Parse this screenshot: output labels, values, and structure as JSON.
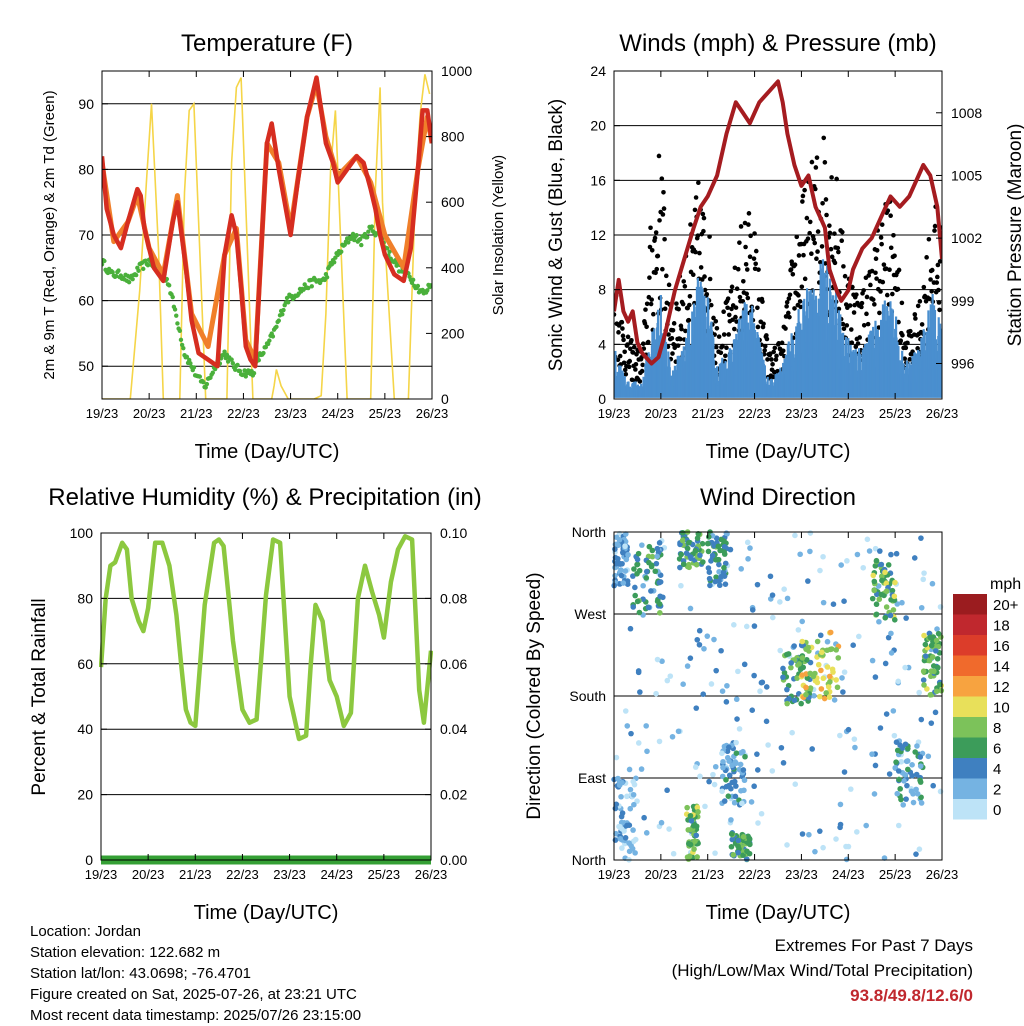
{
  "charts": [
    {
      "id": "temperature",
      "title": "Temperature (F)",
      "xlabel": "Time (Day/UTC)",
      "ylabel_left": "2m & 9m T (Red, Orange) & 2m Td (Green)",
      "ylabel_right": "Solar Insolation (Yellow)",
      "xticks": [
        "19/23",
        "20/23",
        "21/23",
        "22/23",
        "23/23",
        "24/23",
        "25/23",
        "26/23"
      ],
      "yticks_left": [
        "50",
        "60",
        "70",
        "80",
        "90"
      ],
      "yticks_right": [
        "0",
        "200",
        "400",
        "600",
        "800",
        "1000"
      ]
    },
    {
      "id": "winds",
      "title": "Winds (mph) & Pressure (mb)",
      "xlabel": "Time (Day/UTC)",
      "ylabel_left": "Sonic Wind & Gust (Blue, Black)",
      "ylabel_right": "Station Pressure (Maroon)",
      "xticks": [
        "19/23",
        "20/23",
        "21/23",
        "22/23",
        "23/23",
        "24/23",
        "25/23",
        "26/23"
      ],
      "yticks_left": [
        "0",
        "4",
        "8",
        "12",
        "16",
        "20",
        "24"
      ],
      "yticks_right": [
        "996",
        "999",
        "1002",
        "1005",
        "1008"
      ]
    },
    {
      "id": "humidity",
      "title": "Relative Humidity (%) & Precipitation (in)",
      "xlabel": "Time (Day/UTC)",
      "ylabel_left": "Percent & Total Rainfall",
      "xticks": [
        "19/23",
        "20/23",
        "21/23",
        "22/23",
        "23/23",
        "24/23",
        "25/23",
        "26/23"
      ],
      "yticks_left": [
        "0",
        "20",
        "40",
        "60",
        "80",
        "100"
      ],
      "yticks_right": [
        "0.00",
        "0.02",
        "0.04",
        "0.06",
        "0.08",
        "0.10"
      ]
    },
    {
      "id": "winddir",
      "title": "Wind Direction",
      "xlabel": "Time (Day/UTC)",
      "ylabel_left": "Direction (Colored By Speed)",
      "xticks": [
        "19/23",
        "20/23",
        "21/23",
        "22/23",
        "23/23",
        "24/23",
        "25/23",
        "26/23"
      ],
      "yticks_left": [
        "North",
        "East",
        "South",
        "West",
        "North"
      ],
      "legend_title": "mph",
      "legend_labels": [
        "20+",
        "18",
        "16",
        "14",
        "12",
        "10",
        "8",
        "6",
        "4",
        "2",
        "0"
      ],
      "legend_colors": [
        "#9b1c1f",
        "#c0282e",
        "#dc3d2a",
        "#f06a2c",
        "#f7a340",
        "#e8e05a",
        "#7cc25a",
        "#3c9c5a",
        "#3f80c0",
        "#75b3e2",
        "#bde3f7"
      ]
    }
  ],
  "chart_data": [
    {
      "type": "line",
      "title": "Temperature (F)",
      "xlabel": "Time (Day/UTC)",
      "ylabel": "2m & 9m T (Red, Orange) & 2m Td (Green)",
      "y2label": "Solar Insolation (Yellow)",
      "xlim": [
        0,
        7
      ],
      "ylim": [
        45,
        95
      ],
      "y2lim": [
        0,
        1000
      ],
      "x_tick_labels": [
        "19/23",
        "20/23",
        "21/23",
        "22/23",
        "23/23",
        "24/23",
        "25/23",
        "26/23"
      ],
      "series": [
        {
          "name": "2m T",
          "color": "#d62d20",
          "axis": "left",
          "x": [
            0,
            0.1,
            0.25,
            0.4,
            0.55,
            0.75,
            0.82,
            0.9,
            1.0,
            1.1,
            1.3,
            1.5,
            1.6,
            1.78,
            1.9,
            2.05,
            2.25,
            2.45,
            2.6,
            2.75,
            2.85,
            2.95,
            3.05,
            3.15,
            3.25,
            3.35,
            3.5,
            3.6,
            3.75,
            3.85,
            4.0,
            4.15,
            4.35,
            4.55,
            4.75,
            4.9,
            5.0,
            5.2,
            5.4,
            5.55,
            5.7,
            5.8,
            5.9,
            6.0,
            6.2,
            6.4,
            6.55,
            6.7,
            6.8,
            6.9,
            7.0
          ],
          "y": [
            82,
            74,
            70,
            68,
            72,
            77,
            76,
            71,
            68,
            65,
            63,
            72,
            75,
            65,
            57,
            52,
            51,
            50,
            67,
            73,
            70,
            62,
            53,
            51,
            50,
            64,
            84,
            87,
            80,
            76,
            70,
            78,
            88,
            94,
            84,
            81,
            78,
            80,
            82,
            81,
            77,
            74,
            70,
            67,
            64,
            63,
            68,
            80,
            89,
            89,
            84
          ]
        },
        {
          "name": "9m T",
          "color": "#f07f2a",
          "axis": "left",
          "x": [
            0,
            0.25,
            0.55,
            0.75,
            1.0,
            1.3,
            1.6,
            1.9,
            2.25,
            2.6,
            2.85,
            3.05,
            3.25,
            3.5,
            3.75,
            4.0,
            4.35,
            4.55,
            4.75,
            5.0,
            5.4,
            5.7,
            6.0,
            6.4,
            6.7,
            6.9,
            7.0
          ],
          "y": [
            81,
            69,
            72,
            76,
            68,
            64,
            76,
            58,
            53,
            67,
            71,
            54,
            51,
            84,
            81,
            71,
            88,
            93,
            85,
            79,
            82,
            78,
            70,
            65,
            80,
            88,
            84
          ]
        },
        {
          "name": "2m Td",
          "color": "#4ab03b",
          "axis": "left",
          "x": [
            0,
            0.2,
            0.4,
            0.6,
            0.8,
            1.0,
            1.2,
            1.4,
            1.6,
            1.75,
            1.9,
            2.05,
            2.2,
            2.4,
            2.6,
            2.8,
            3.0,
            3.2,
            3.3,
            3.5,
            3.7,
            3.9,
            4.1,
            4.3,
            4.5,
            4.7,
            4.9,
            5.1,
            5.3,
            5.5,
            5.7,
            5.9,
            6.1,
            6.3,
            6.5,
            6.7,
            6.85,
            7.0
          ],
          "y": [
            66,
            64,
            64,
            63,
            65,
            66,
            65,
            63,
            57,
            52,
            50,
            48,
            47,
            50,
            52,
            50,
            49,
            49,
            51,
            53,
            56,
            60,
            61,
            62,
            63,
            63,
            66,
            68,
            70,
            69,
            71,
            70,
            67,
            65,
            64,
            62,
            61,
            63
          ]
        },
        {
          "name": "Solar Insolation",
          "color": "#f5d548",
          "axis": "right",
          "x": [
            0,
            0.2,
            0.3,
            0.6,
            0.8,
            0.95,
            1.05,
            1.2,
            1.3,
            1.5,
            1.65,
            1.75,
            1.85,
            1.95,
            2.2,
            2.5,
            2.65,
            2.75,
            2.85,
            2.95,
            3.2,
            3.5,
            3.6,
            3.65,
            3.7,
            3.8,
            3.95,
            4.2,
            4.5,
            4.65,
            4.75,
            4.85,
            4.95,
            5.2,
            5.5,
            5.7,
            5.8,
            5.9,
            5.95,
            6.2,
            6.5,
            6.65,
            6.75,
            6.85,
            6.95
          ],
          "y": [
            0,
            0,
            0,
            0,
            330,
            680,
            900,
            450,
            0,
            0,
            0,
            630,
            880,
            900,
            0,
            0,
            0,
            720,
            950,
            980,
            0,
            0,
            0,
            40,
            90,
            40,
            0,
            0,
            0,
            10,
            260,
            700,
            880,
            0,
            0,
            0,
            640,
            950,
            600,
            0,
            0,
            640,
            870,
            990,
            930
          ]
        }
      ]
    },
    {
      "type": "line",
      "title": "Winds (mph) & Pressure (mb)",
      "xlabel": "Time (Day/UTC)",
      "ylabel": "Sonic Wind & Gust (Blue, Black)",
      "y2label": "Station Pressure (Maroon)",
      "xlim": [
        0,
        7
      ],
      "ylim": [
        0,
        24
      ],
      "y2lim": [
        994.3,
        1010
      ],
      "x_tick_labels": [
        "19/23",
        "20/23",
        "21/23",
        "22/23",
        "23/23",
        "24/23",
        "25/23",
        "26/23"
      ],
      "series": [
        {
          "name": "Sonic Wind",
          "color": "#3f7fc0",
          "axis": "left",
          "x": [
            0,
            0.3,
            0.6,
            0.8,
            1.0,
            1.2,
            1.5,
            1.8,
            2.0,
            2.2,
            2.5,
            2.8,
            3.0,
            3.3,
            3.6,
            3.9,
            4.2,
            4.5,
            4.7,
            4.9,
            5.2,
            5.5,
            5.8,
            6.0,
            6.2,
            6.5,
            6.8,
            7.0
          ],
          "y": [
            3,
            1,
            1,
            4,
            6,
            2,
            3,
            7,
            6,
            2,
            3,
            6,
            5,
            1,
            2,
            5,
            7,
            8,
            7,
            4,
            3,
            4,
            6,
            5,
            2,
            3,
            6,
            4
          ]
        },
        {
          "name": "Gust",
          "color": "#000000",
          "axis": "left",
          "x": [
            0,
            0.3,
            0.6,
            0.8,
            1.0,
            1.2,
            1.5,
            1.8,
            2.0,
            2.2,
            2.5,
            2.8,
            3.0,
            3.3,
            3.6,
            3.9,
            4.2,
            4.5,
            4.7,
            4.9,
            5.2,
            5.5,
            5.8,
            6.0,
            6.2,
            6.5,
            6.8,
            7.0
          ],
          "y": [
            8,
            4,
            3,
            12,
            17,
            6,
            9,
            14,
            12,
            5,
            7,
            13,
            11,
            3,
            4,
            12,
            15,
            18,
            16,
            10,
            7,
            9,
            14,
            12,
            4,
            6,
            13,
            11
          ]
        },
        {
          "name": "Station Pressure",
          "color": "#a51c20",
          "axis": "right",
          "x": [
            0,
            0.1,
            0.2,
            0.3,
            0.4,
            0.5,
            0.6,
            0.8,
            0.95,
            1.1,
            1.3,
            1.5,
            1.7,
            1.85,
            2.0,
            2.2,
            2.4,
            2.6,
            2.75,
            2.9,
            3.1,
            3.3,
            3.5,
            3.6,
            3.7,
            3.85,
            4.0,
            4.15,
            4.3,
            4.5,
            4.6,
            4.75,
            4.85,
            5.0,
            5.1,
            5.3,
            5.5,
            5.7,
            5.9,
            6.1,
            6.3,
            6.5,
            6.6,
            6.75,
            6.9,
            7.0
          ],
          "y": [
            998.5,
            1000,
            998.5,
            998,
            998.5,
            997,
            996.5,
            996,
            996.3,
            997.5,
            999.5,
            1001,
            1002.5,
            1003.5,
            1004,
            1005,
            1007,
            1008.5,
            1008,
            1007.5,
            1008.5,
            1009,
            1009.5,
            1008.5,
            1007,
            1005.5,
            1004.5,
            1005,
            1003.5,
            1002.5,
            1000.5,
            999.5,
            999,
            999.5,
            1000.5,
            1001.5,
            1002,
            1003,
            1004,
            1003.5,
            1004,
            1005,
            1005.5,
            1005,
            1003.5,
            1001
          ]
        }
      ]
    },
    {
      "type": "line",
      "title": "Relative Humidity (%) & Precipitation (in)",
      "xlabel": "Time (Day/UTC)",
      "ylabel": "Percent & Total Rainfall",
      "xlim": [
        0,
        7
      ],
      "ylim": [
        0,
        100
      ],
      "y2lim": [
        0,
        0.1
      ],
      "x_tick_labels": [
        "19/23",
        "20/23",
        "21/23",
        "22/23",
        "23/23",
        "24/23",
        "25/23",
        "26/23"
      ],
      "series": [
        {
          "name": "Relative Humidity",
          "color": "#8cc83f",
          "axis": "left",
          "x": [
            0,
            0.1,
            0.2,
            0.3,
            0.45,
            0.55,
            0.65,
            0.8,
            0.9,
            1.0,
            1.15,
            1.3,
            1.45,
            1.6,
            1.7,
            1.8,
            1.9,
            2.0,
            2.2,
            2.4,
            2.5,
            2.6,
            2.8,
            3.0,
            3.15,
            3.3,
            3.5,
            3.65,
            3.8,
            4.0,
            4.2,
            4.35,
            4.45,
            4.55,
            4.7,
            4.85,
            5.0,
            5.15,
            5.3,
            5.45,
            5.6,
            5.75,
            5.9,
            6.0,
            6.15,
            6.3,
            6.45,
            6.6,
            6.75,
            6.85,
            7.0
          ],
          "y": [
            59,
            80,
            90,
            91,
            97,
            95,
            80,
            73,
            70,
            77,
            97,
            97,
            90,
            75,
            60,
            46,
            42,
            41,
            78,
            97,
            98,
            96,
            67,
            46,
            42,
            43,
            81,
            98,
            97,
            50,
            37,
            38,
            60,
            78,
            73,
            55,
            50,
            41,
            45,
            80,
            90,
            82,
            75,
            68,
            85,
            95,
            99,
            98,
            52,
            42,
            64
          ]
        },
        {
          "name": "Total Precipitation",
          "color": "#35a035",
          "axis": "right",
          "x": [
            0,
            7
          ],
          "y": [
            0,
            0
          ]
        }
      ]
    },
    {
      "type": "scatter",
      "title": "Wind Direction",
      "xlabel": "Time (Day/UTC)",
      "ylabel": "Direction (Colored By Speed)",
      "xlim": [
        0,
        7
      ],
      "ylim": [
        0,
        360
      ],
      "x_tick_labels": [
        "19/23",
        "20/23",
        "21/23",
        "22/23",
        "23/23",
        "24/23",
        "25/23",
        "26/23"
      ],
      "y_tick_labels": [
        "North",
        "East",
        "South",
        "West",
        "North"
      ],
      "color_scale": {
        "title": "mph",
        "labels": [
          "20+",
          "18",
          "16",
          "14",
          "12",
          "10",
          "8",
          "6",
          "4",
          "2",
          "0"
        ]
      },
      "clusters": [
        {
          "x": [
            0.0,
            0.5
          ],
          "y": [
            0,
            90
          ],
          "speed": 2
        },
        {
          "x": [
            0.0,
            0.3
          ],
          "y": [
            300,
            360
          ],
          "speed": 3
        },
        {
          "x": [
            0.4,
            1.0
          ],
          "y": [
            270,
            345
          ],
          "speed": 5
        },
        {
          "x": [
            1.4,
            1.9
          ],
          "y": [
            320,
            360
          ],
          "speed": 6
        },
        {
          "x": [
            1.55,
            1.8
          ],
          "y": [
            0,
            60
          ],
          "speed": 7
        },
        {
          "x": [
            2.0,
            2.4
          ],
          "y": [
            300,
            360
          ],
          "speed": 5
        },
        {
          "x": [
            2.3,
            2.8
          ],
          "y": [
            60,
            130
          ],
          "speed": 3
        },
        {
          "x": [
            2.5,
            2.9
          ],
          "y": [
            0,
            30
          ],
          "speed": 6
        },
        {
          "x": [
            3.6,
            4.2
          ],
          "y": [
            170,
            240
          ],
          "speed": 6
        },
        {
          "x": [
            4.0,
            4.8
          ],
          "y": [
            170,
            250
          ],
          "speed": 10
        },
        {
          "x": [
            5.5,
            6.0
          ],
          "y": [
            260,
            330
          ],
          "speed": 7
        },
        {
          "x": [
            6.0,
            6.6
          ],
          "y": [
            60,
            130
          ],
          "speed": 4
        },
        {
          "x": [
            6.6,
            7.0
          ],
          "y": [
            180,
            250
          ],
          "speed": 7
        }
      ]
    }
  ],
  "info": {
    "location": "Location: Jordan",
    "elevation": "Station elevation: 122.682 m",
    "latlon": "Station lat/lon: 43.0698; -76.4701",
    "created": "Figure created on Sat, 2025-07-26, at 23:21 UTC",
    "latest": "Most recent data timestamp: 2025/07/26 23:15:00"
  },
  "extremes": {
    "heading": "Extremes For Past 7 Days",
    "subheading": "(High/Low/Max Wind/Total Precipitation)",
    "values": "93.8/49.8/12.6/0"
  }
}
